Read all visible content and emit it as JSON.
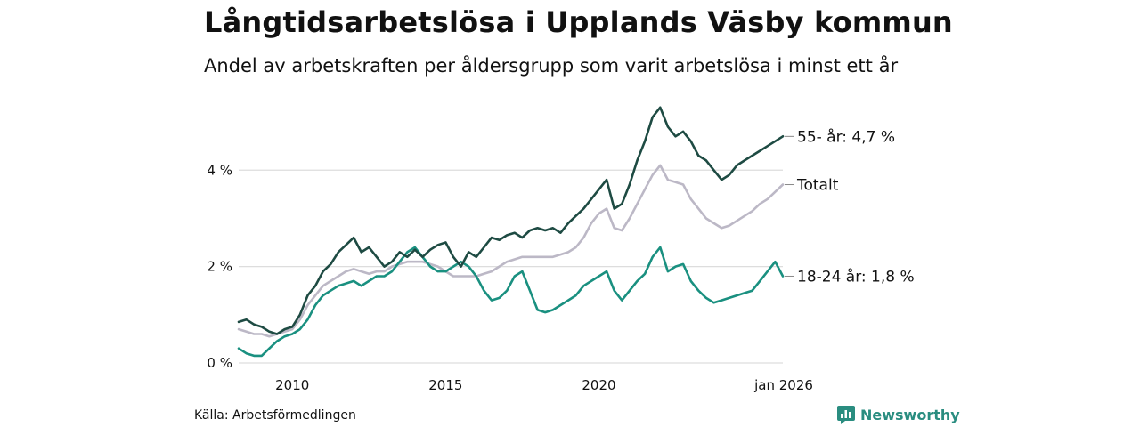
{
  "title": "Långtidsarbetslösa i Upplands Väsby kommun",
  "subtitle": "Andel av arbetskraften per åldersgrupp som varit arbetslösa i minst ett år",
  "source": "Källa: Arbetsförmedlingen",
  "brand": "Newsworthy",
  "colors": {
    "age55": "#1e4b43",
    "total": "#bcb8c6",
    "age18_24": "#1a9080",
    "grid": "#dddddd",
    "text": "#111111",
    "brand": "#2a8d80"
  },
  "chart_data": {
    "type": "line",
    "title": "Långtidsarbetslösa i Upplands Väsby kommun",
    "xlabel": "",
    "ylabel": "",
    "xlim": [
      2008.25,
      2026.0
    ],
    "ylim": [
      0,
      5.5
    ],
    "y_ticks": [
      {
        "value": 0,
        "label": "0 %"
      },
      {
        "value": 2,
        "label": "2 %"
      },
      {
        "value": 4,
        "label": "4 %"
      }
    ],
    "x_ticks": [
      {
        "value": 2010,
        "label": "2010"
      },
      {
        "value": 2015,
        "label": "2015"
      },
      {
        "value": 2020,
        "label": "2020"
      },
      {
        "value": 2026,
        "label": "jan 2026"
      }
    ],
    "series": [
      {
        "name": "55- år",
        "end_label": "55- år: 4,7 %",
        "color_key": "age55",
        "points": [
          [
            2008.25,
            0.85
          ],
          [
            2008.5,
            0.9
          ],
          [
            2008.75,
            0.8
          ],
          [
            2009.0,
            0.75
          ],
          [
            2009.25,
            0.65
          ],
          [
            2009.5,
            0.6
          ],
          [
            2009.75,
            0.7
          ],
          [
            2010.0,
            0.75
          ],
          [
            2010.25,
            1.0
          ],
          [
            2010.5,
            1.4
          ],
          [
            2010.75,
            1.6
          ],
          [
            2011.0,
            1.9
          ],
          [
            2011.25,
            2.05
          ],
          [
            2011.5,
            2.3
          ],
          [
            2011.75,
            2.45
          ],
          [
            2012.0,
            2.6
          ],
          [
            2012.25,
            2.3
          ],
          [
            2012.5,
            2.4
          ],
          [
            2012.75,
            2.2
          ],
          [
            2013.0,
            2.0
          ],
          [
            2013.25,
            2.1
          ],
          [
            2013.5,
            2.3
          ],
          [
            2013.75,
            2.2
          ],
          [
            2014.0,
            2.35
          ],
          [
            2014.25,
            2.2
          ],
          [
            2014.5,
            2.35
          ],
          [
            2014.75,
            2.45
          ],
          [
            2015.0,
            2.5
          ],
          [
            2015.25,
            2.2
          ],
          [
            2015.5,
            2.0
          ],
          [
            2015.75,
            2.3
          ],
          [
            2016.0,
            2.2
          ],
          [
            2016.25,
            2.4
          ],
          [
            2016.5,
            2.6
          ],
          [
            2016.75,
            2.55
          ],
          [
            2017.0,
            2.65
          ],
          [
            2017.25,
            2.7
          ],
          [
            2017.5,
            2.6
          ],
          [
            2017.75,
            2.75
          ],
          [
            2018.0,
            2.8
          ],
          [
            2018.25,
            2.75
          ],
          [
            2018.5,
            2.8
          ],
          [
            2018.75,
            2.7
          ],
          [
            2019.0,
            2.9
          ],
          [
            2019.25,
            3.05
          ],
          [
            2019.5,
            3.2
          ],
          [
            2019.75,
            3.4
          ],
          [
            2020.0,
            3.6
          ],
          [
            2020.25,
            3.8
          ],
          [
            2020.5,
            3.2
          ],
          [
            2020.75,
            3.3
          ],
          [
            2021.0,
            3.7
          ],
          [
            2021.25,
            4.2
          ],
          [
            2021.5,
            4.6
          ],
          [
            2021.75,
            5.1
          ],
          [
            2022.0,
            5.3
          ],
          [
            2022.25,
            4.9
          ],
          [
            2022.5,
            4.7
          ],
          [
            2022.75,
            4.8
          ],
          [
            2023.0,
            4.6
          ],
          [
            2023.25,
            4.3
          ],
          [
            2023.5,
            4.2
          ],
          [
            2023.75,
            4.0
          ],
          [
            2024.0,
            3.8
          ],
          [
            2024.25,
            3.9
          ],
          [
            2024.5,
            4.1
          ],
          [
            2024.75,
            4.2
          ],
          [
            2025.0,
            4.3
          ],
          [
            2025.25,
            4.4
          ],
          [
            2025.5,
            4.5
          ],
          [
            2025.75,
            4.6
          ],
          [
            2026.0,
            4.7
          ]
        ]
      },
      {
        "name": "Totalt",
        "end_label": "Totalt",
        "color_key": "total",
        "points": [
          [
            2008.25,
            0.7
          ],
          [
            2008.5,
            0.65
          ],
          [
            2008.75,
            0.6
          ],
          [
            2009.0,
            0.6
          ],
          [
            2009.25,
            0.55
          ],
          [
            2009.5,
            0.6
          ],
          [
            2009.75,
            0.65
          ],
          [
            2010.0,
            0.7
          ],
          [
            2010.25,
            0.9
          ],
          [
            2010.5,
            1.2
          ],
          [
            2010.75,
            1.4
          ],
          [
            2011.0,
            1.6
          ],
          [
            2011.25,
            1.7
          ],
          [
            2011.5,
            1.8
          ],
          [
            2011.75,
            1.9
          ],
          [
            2012.0,
            1.95
          ],
          [
            2012.25,
            1.9
          ],
          [
            2012.5,
            1.85
          ],
          [
            2012.75,
            1.9
          ],
          [
            2013.0,
            1.9
          ],
          [
            2013.25,
            2.0
          ],
          [
            2013.5,
            2.05
          ],
          [
            2013.75,
            2.1
          ],
          [
            2014.0,
            2.1
          ],
          [
            2014.25,
            2.1
          ],
          [
            2014.5,
            2.05
          ],
          [
            2014.75,
            2.0
          ],
          [
            2015.0,
            1.9
          ],
          [
            2015.25,
            1.8
          ],
          [
            2015.5,
            1.8
          ],
          [
            2015.75,
            1.8
          ],
          [
            2016.0,
            1.8
          ],
          [
            2016.25,
            1.85
          ],
          [
            2016.5,
            1.9
          ],
          [
            2016.75,
            2.0
          ],
          [
            2017.0,
            2.1
          ],
          [
            2017.25,
            2.15
          ],
          [
            2017.5,
            2.2
          ],
          [
            2017.75,
            2.2
          ],
          [
            2018.0,
            2.2
          ],
          [
            2018.25,
            2.2
          ],
          [
            2018.5,
            2.2
          ],
          [
            2018.75,
            2.25
          ],
          [
            2019.0,
            2.3
          ],
          [
            2019.25,
            2.4
          ],
          [
            2019.5,
            2.6
          ],
          [
            2019.75,
            2.9
          ],
          [
            2020.0,
            3.1
          ],
          [
            2020.25,
            3.2
          ],
          [
            2020.5,
            2.8
          ],
          [
            2020.75,
            2.75
          ],
          [
            2021.0,
            3.0
          ],
          [
            2021.25,
            3.3
          ],
          [
            2021.5,
            3.6
          ],
          [
            2021.75,
            3.9
          ],
          [
            2022.0,
            4.1
          ],
          [
            2022.25,
            3.8
          ],
          [
            2022.5,
            3.75
          ],
          [
            2022.75,
            3.7
          ],
          [
            2023.0,
            3.4
          ],
          [
            2023.25,
            3.2
          ],
          [
            2023.5,
            3.0
          ],
          [
            2023.75,
            2.9
          ],
          [
            2024.0,
            2.8
          ],
          [
            2024.25,
            2.85
          ],
          [
            2024.5,
            2.95
          ],
          [
            2024.75,
            3.05
          ],
          [
            2025.0,
            3.15
          ],
          [
            2025.25,
            3.3
          ],
          [
            2025.5,
            3.4
          ],
          [
            2025.75,
            3.55
          ],
          [
            2026.0,
            3.7
          ]
        ]
      },
      {
        "name": "18-24 år",
        "end_label": "18-24 år: 1,8 %",
        "color_key": "age18_24",
        "points": [
          [
            2008.25,
            0.3
          ],
          [
            2008.5,
            0.2
          ],
          [
            2008.75,
            0.15
          ],
          [
            2009.0,
            0.15
          ],
          [
            2009.25,
            0.3
          ],
          [
            2009.5,
            0.45
          ],
          [
            2009.75,
            0.55
          ],
          [
            2010.0,
            0.6
          ],
          [
            2010.25,
            0.7
          ],
          [
            2010.5,
            0.9
          ],
          [
            2010.75,
            1.2
          ],
          [
            2011.0,
            1.4
          ],
          [
            2011.25,
            1.5
          ],
          [
            2011.5,
            1.6
          ],
          [
            2011.75,
            1.65
          ],
          [
            2012.0,
            1.7
          ],
          [
            2012.25,
            1.6
          ],
          [
            2012.5,
            1.7
          ],
          [
            2012.75,
            1.8
          ],
          [
            2013.0,
            1.8
          ],
          [
            2013.25,
            1.9
          ],
          [
            2013.5,
            2.1
          ],
          [
            2013.75,
            2.3
          ],
          [
            2014.0,
            2.4
          ],
          [
            2014.25,
            2.2
          ],
          [
            2014.5,
            2.0
          ],
          [
            2014.75,
            1.9
          ],
          [
            2015.0,
            1.9
          ],
          [
            2015.25,
            2.0
          ],
          [
            2015.5,
            2.1
          ],
          [
            2015.75,
            2.0
          ],
          [
            2016.0,
            1.8
          ],
          [
            2016.25,
            1.5
          ],
          [
            2016.5,
            1.3
          ],
          [
            2016.75,
            1.35
          ],
          [
            2017.0,
            1.5
          ],
          [
            2017.25,
            1.8
          ],
          [
            2017.5,
            1.9
          ],
          [
            2017.75,
            1.5
          ],
          [
            2018.0,
            1.1
          ],
          [
            2018.25,
            1.05
          ],
          [
            2018.5,
            1.1
          ],
          [
            2018.75,
            1.2
          ],
          [
            2019.0,
            1.3
          ],
          [
            2019.25,
            1.4
          ],
          [
            2019.5,
            1.6
          ],
          [
            2019.75,
            1.7
          ],
          [
            2020.0,
            1.8
          ],
          [
            2020.25,
            1.9
          ],
          [
            2020.5,
            1.5
          ],
          [
            2020.75,
            1.3
          ],
          [
            2021.0,
            1.5
          ],
          [
            2021.25,
            1.7
          ],
          [
            2021.5,
            1.85
          ],
          [
            2021.75,
            2.2
          ],
          [
            2022.0,
            2.4
          ],
          [
            2022.25,
            1.9
          ],
          [
            2022.5,
            2.0
          ],
          [
            2022.75,
            2.05
          ],
          [
            2023.0,
            1.7
          ],
          [
            2023.25,
            1.5
          ],
          [
            2023.5,
            1.35
          ],
          [
            2023.75,
            1.25
          ],
          [
            2024.0,
            1.3
          ],
          [
            2024.25,
            1.35
          ],
          [
            2024.5,
            1.4
          ],
          [
            2024.75,
            1.45
          ],
          [
            2025.0,
            1.5
          ],
          [
            2025.25,
            1.7
          ],
          [
            2025.5,
            1.9
          ],
          [
            2025.75,
            2.1
          ],
          [
            2026.0,
            1.8
          ]
        ]
      }
    ]
  }
}
